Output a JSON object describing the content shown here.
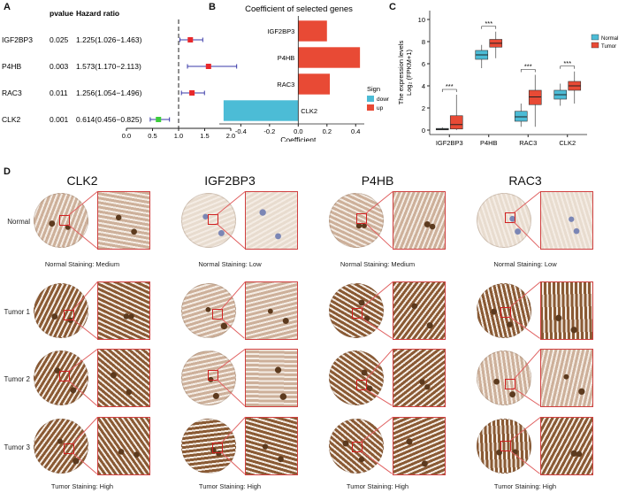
{
  "panels": {
    "A": "A",
    "B": "B",
    "C": "C",
    "D": "D"
  },
  "panel_a": {
    "col_pvalue": "pvalue",
    "col_hr": "Hazard ratio",
    "rows": [
      {
        "gene": "IGF2BP3",
        "pvalue": "0.025",
        "hr_text": "1.225(1.026−1.463)",
        "hr": 1.225,
        "lo": 1.026,
        "hi": 1.463,
        "color": "#e8282b"
      },
      {
        "gene": "P4HB",
        "pvalue": "0.003",
        "hr_text": "1.573(1.170−2.113)",
        "hr": 1.573,
        "lo": 1.17,
        "hi": 2.113,
        "color": "#e8282b"
      },
      {
        "gene": "RAC3",
        "pvalue": "0.011",
        "hr_text": "1.256(1.054−1.496)",
        "hr": 1.256,
        "lo": 1.054,
        "hi": 1.496,
        "color": "#e8282b"
      },
      {
        "gene": "CLK2",
        "pvalue": "0.001",
        "hr_text": "0.614(0.456−0.825)",
        "hr": 0.614,
        "lo": 0.456,
        "hi": 0.825,
        "color": "#3ccc3c"
      }
    ],
    "ticks": [
      "0.0",
      "0.5",
      "1.0",
      "1.5",
      "2.0"
    ],
    "tick_values": [
      0,
      0.5,
      1.0,
      1.5,
      2.0
    ],
    "ref_line": 1.0
  },
  "chart_data": [
    {
      "type": "bar",
      "orientation": "horizontal",
      "title": "Coefficient of selected genes",
      "xlabel": "Coefficient",
      "categories": [
        "IGF2BP3",
        "P4HB",
        "RAC3",
        "CLK2"
      ],
      "values": [
        0.2,
        0.43,
        0.22,
        -0.52
      ],
      "signs": [
        "up",
        "up",
        "up",
        "down"
      ],
      "xticks": [
        "-0.4",
        "-0.2",
        "0.0",
        "0.2",
        "0.4"
      ],
      "xtick_values": [
        -0.4,
        -0.2,
        0.0,
        0.2,
        0.4
      ],
      "xlim": [
        -0.55,
        0.46
      ],
      "legend": {
        "title": "Sign",
        "entries": [
          {
            "label": "down",
            "color": "#4cbcd6"
          },
          {
            "label": "up",
            "color": "#e84a35"
          }
        ],
        "position": "right"
      }
    },
    {
      "type": "box",
      "ylabel_line1": "The expression levels",
      "ylabel_line2": "Log₂ (FPKM+1)",
      "categories": [
        "IGF2BP3",
        "P4HB",
        "RAC3",
        "CLK2"
      ],
      "yticks": [
        "0",
        "2",
        "4",
        "6",
        "8",
        "10"
      ],
      "ytick_values": [
        0,
        2,
        4,
        6,
        8,
        10
      ],
      "ylim": [
        -0.4,
        10.8
      ],
      "significance": [
        "***",
        "***",
        "***",
        "***"
      ],
      "series": [
        {
          "name": "Normal",
          "color": "#4cbcd6",
          "boxes": [
            {
              "min": 0.0,
              "q1": 0.02,
              "median": 0.08,
              "q3": 0.15,
              "max": 0.25
            },
            {
              "min": 5.6,
              "q1": 6.4,
              "median": 6.8,
              "q3": 7.2,
              "max": 7.7
            },
            {
              "min": 0.3,
              "q1": 0.8,
              "median": 1.2,
              "q3": 1.7,
              "max": 2.4
            },
            {
              "min": 2.2,
              "q1": 2.8,
              "median": 3.2,
              "q3": 3.6,
              "max": 4.2
            }
          ]
        },
        {
          "name": "Tumor",
          "color": "#e84a35",
          "boxes": [
            {
              "min": 0.0,
              "q1": 0.1,
              "median": 0.5,
              "q3": 1.3,
              "max": 3.2
            },
            {
              "min": 6.5,
              "q1": 7.5,
              "median": 7.85,
              "q3": 8.2,
              "max": 8.9
            },
            {
              "min": 0.3,
              "q1": 2.3,
              "median": 3.0,
              "q3": 3.6,
              "max": 5.0
            },
            {
              "min": 2.4,
              "q1": 3.6,
              "median": 4.0,
              "q3": 4.4,
              "max": 5.3
            }
          ]
        }
      ],
      "legend": {
        "entries": [
          "Normal",
          "Tumor"
        ],
        "position": "right"
      }
    }
  ],
  "panel_d": {
    "genes": [
      "CLK2",
      "IGF2BP3",
      "P4HB",
      "RAC3"
    ],
    "rows": [
      "Normal",
      "Tumor 1",
      "Tumor 2",
      "Tumor 3"
    ],
    "normal_captions": [
      "Normal Staining: Medium",
      "Normal Staining: Low",
      "Normal Staining: Medium",
      "Normal Staining: Low"
    ],
    "tumor_captions": [
      "Tumor Staining: High",
      "Tumor Staining: High",
      "Tumor Staining: High",
      "Tumor Staining: High"
    ],
    "stain_colors": {
      "low": "#e8dccf",
      "medium": "#cdb09a",
      "high": "#8a5a34",
      "blue": "#7b86b5"
    }
  }
}
